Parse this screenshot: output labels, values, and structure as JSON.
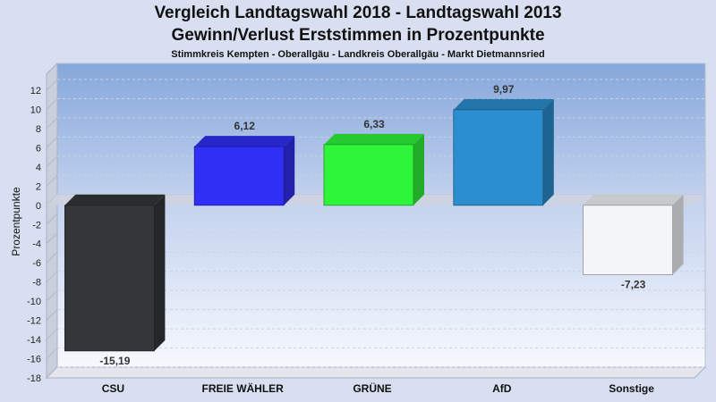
{
  "title_line1": "Vergleich Landtagswahl 2018 - Landtagswahl 2013",
  "title_line2": "Gewinn/Verlust Erststimmen in Prozentpunkte",
  "subtitle": "Stimmkreis Kempten - Oberallgäu - Landkreis Oberallgäu - Markt Dietmannsried",
  "chart_data": {
    "type": "bar",
    "title": "Vergleich Landtagswahl 2018 - Landtagswahl 2013 / Gewinn/Verlust Erststimmen in Prozentpunkte",
    "subtitle": "Stimmkreis Kempten - Oberallgäu - Landkreis Oberallgäu - Markt Dietmannsried",
    "xlabel": "",
    "ylabel": "Prozentpunkte",
    "categories": [
      "CSU",
      "FREIE WÄHLER",
      "GRÜNE",
      "AfD",
      "Sonstige"
    ],
    "values": [
      -15.19,
      6.12,
      6.33,
      9.97,
      -7.23
    ],
    "value_labels": [
      "-15,19",
      "6,12",
      "6,33",
      "9,97",
      "-7,23"
    ],
    "colors": [
      "#353638",
      "#2f2ff5",
      "#2ff53a",
      "#2b8fcf",
      "#f4f5f9"
    ],
    "yticks": [
      "12",
      "10",
      "8",
      "6",
      "4",
      "2",
      "0",
      "-2",
      "-4",
      "-6",
      "-8",
      "-10",
      "-12",
      "-14",
      "-16",
      "-18"
    ],
    "ytick_values": [
      12,
      10,
      8,
      6,
      4,
      2,
      0,
      -2,
      -4,
      -6,
      -8,
      -10,
      -12,
      -14,
      -16,
      -18
    ],
    "ylim": [
      -18,
      12
    ],
    "grid": true,
    "legend": "none"
  }
}
